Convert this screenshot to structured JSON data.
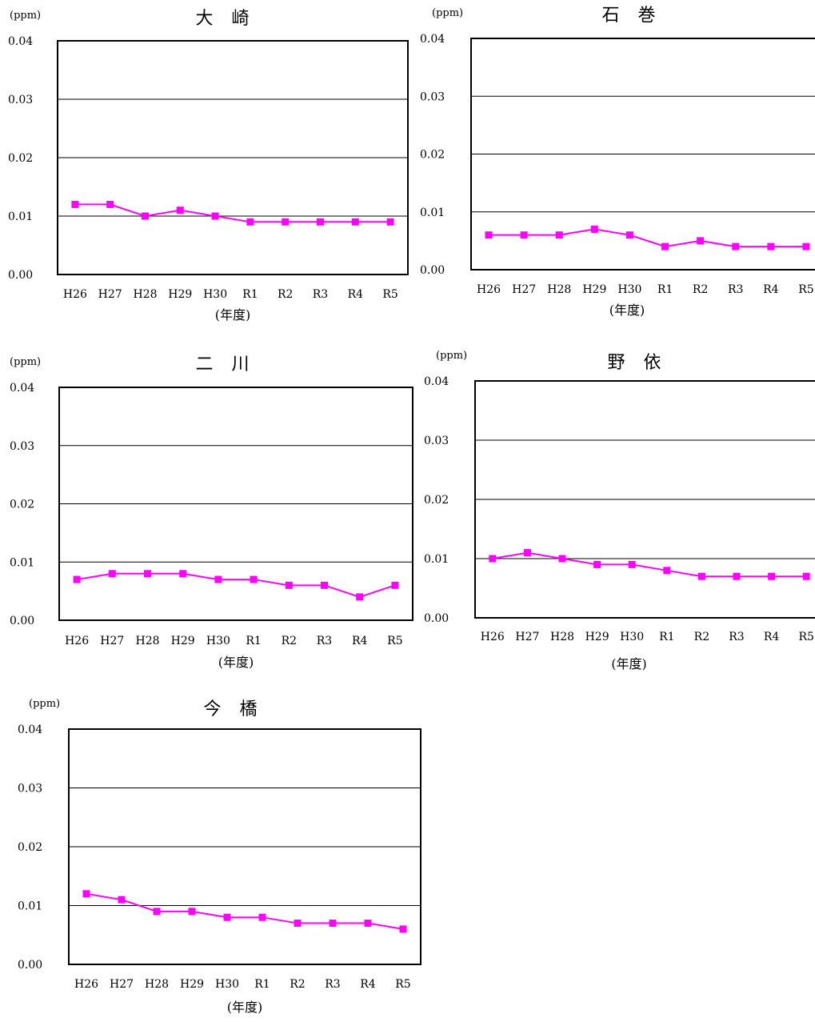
{
  "colors": {
    "series": "#ff00ff",
    "axis": "#000000",
    "grid": "#000000"
  },
  "chart_data": [
    {
      "type": "line",
      "title": "大 崎",
      "unit": "(ppm)",
      "xlabel": "(年度)",
      "ylim": [
        0,
        0.04
      ],
      "yticks": [
        "0.00",
        "0.01",
        "0.02",
        "0.03",
        "0.04"
      ],
      "grid": true,
      "marker": "square",
      "categories": [
        "H26",
        "H27",
        "H28",
        "H29",
        "H30",
        "R1",
        "R2",
        "R3",
        "R4",
        "R5"
      ],
      "values": [
        0.012,
        0.012,
        0.01,
        0.011,
        0.01,
        0.009,
        0.009,
        0.009,
        0.009,
        0.009
      ]
    },
    {
      "type": "line",
      "title": "石 巻",
      "unit": "(ppm)",
      "xlabel": "(年度)",
      "ylim": [
        0,
        0.04
      ],
      "yticks": [
        "0.00",
        "0.01",
        "0.02",
        "0.03",
        "0.04"
      ],
      "grid": true,
      "marker": "square",
      "categories": [
        "H26",
        "H27",
        "H28",
        "H29",
        "H30",
        "R1",
        "R2",
        "R3",
        "R4",
        "R5"
      ],
      "values": [
        0.006,
        0.006,
        0.006,
        0.007,
        0.006,
        0.004,
        0.005,
        0.004,
        0.004,
        0.004
      ]
    },
    {
      "type": "line",
      "title": "二 川",
      "unit": "(ppm)",
      "xlabel": "(年度)",
      "ylim": [
        0,
        0.04
      ],
      "yticks": [
        "0.00",
        "0.01",
        "0.02",
        "0.03",
        "0.04"
      ],
      "grid": true,
      "marker": "square",
      "categories": [
        "H26",
        "H27",
        "H28",
        "H29",
        "H30",
        "R1",
        "R2",
        "R3",
        "R4",
        "R5"
      ],
      "values": [
        0.007,
        0.008,
        0.008,
        0.008,
        0.007,
        0.007,
        0.006,
        0.006,
        0.004,
        0.006
      ]
    },
    {
      "type": "line",
      "title": "野 依",
      "unit": "(ppm)",
      "xlabel": "(年度)",
      "ylim": [
        0,
        0.04
      ],
      "yticks": [
        "0.00",
        "0.01",
        "0.02",
        "0.03",
        "0.04"
      ],
      "grid": true,
      "marker": "square",
      "categories": [
        "H26",
        "H27",
        "H28",
        "H29",
        "H30",
        "R1",
        "R2",
        "R3",
        "R4",
        "R5"
      ],
      "values": [
        0.01,
        0.011,
        0.01,
        0.009,
        0.009,
        0.008,
        0.007,
        0.007,
        0.007,
        0.007
      ]
    },
    {
      "type": "line",
      "title": "今 橋",
      "unit": "(ppm)",
      "xlabel": "(年度)",
      "ylim": [
        0,
        0.04
      ],
      "yticks": [
        "0.00",
        "0.01",
        "0.02",
        "0.03",
        "0.04"
      ],
      "grid": true,
      "marker": "square",
      "categories": [
        "H26",
        "H27",
        "H28",
        "H29",
        "H30",
        "R1",
        "R2",
        "R3",
        "R4",
        "R5"
      ],
      "values": [
        0.012,
        0.011,
        0.009,
        0.009,
        0.008,
        0.008,
        0.007,
        0.007,
        0.007,
        0.006
      ]
    }
  ]
}
